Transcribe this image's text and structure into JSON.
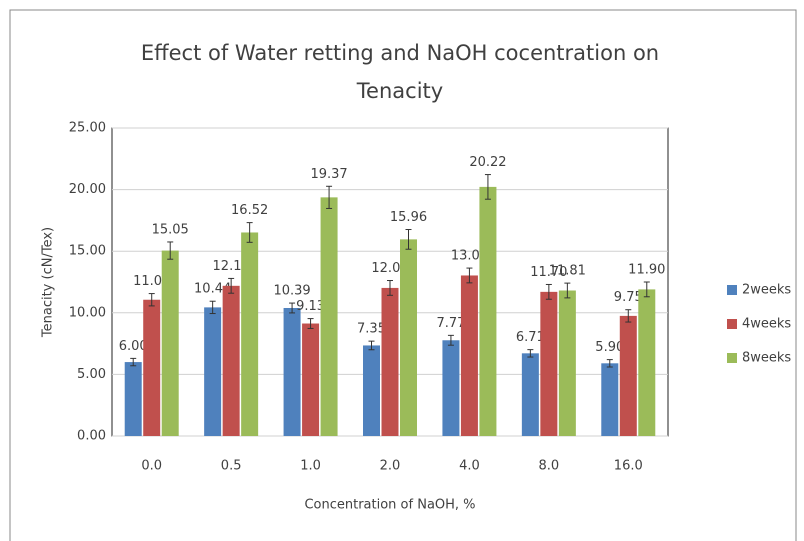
{
  "chart_data": {
    "type": "bar",
    "title": "Effect of Water retting and NaOH cocentration on Tenacity",
    "x_label": "Concentration of NaOH, %",
    "y_label": "Tenacity (cN/Tex)",
    "categories": [
      "0.0",
      "0.5",
      "1.0",
      "2.0",
      "4.0",
      "8.0",
      "16.0"
    ],
    "series": [
      {
        "name": "2weeks",
        "color": "#4f81bd",
        "values": [
          6.0,
          10.44,
          10.39,
          7.35,
          7.77,
          6.71,
          5.9
        ],
        "value_labels": [
          "6.00",
          "10.44",
          "10.39",
          "7.35",
          "7.77",
          "6.71",
          "5.90"
        ],
        "errors": [
          0.3,
          0.5,
          0.4,
          0.35,
          0.4,
          0.3,
          0.3
        ]
      },
      {
        "name": "4weeks",
        "color": "#c0504d",
        "values": [
          11.06,
          12.19,
          9.13,
          12.02,
          13.03,
          11.7,
          9.75
        ],
        "value_labels": [
          "11.06",
          "12.19",
          "9.13",
          "12.02",
          "13.03",
          "11.70",
          "9.75"
        ],
        "errors": [
          0.5,
          0.6,
          0.4,
          0.6,
          0.6,
          0.6,
          0.5
        ]
      },
      {
        "name": "8weeks",
        "color": "#9bbb59",
        "values": [
          15.05,
          16.52,
          19.37,
          15.96,
          20.22,
          11.81,
          11.9
        ],
        "value_labels": [
          "15.05",
          "16.52",
          "19.37",
          "15.96",
          "20.22",
          "11.81",
          "11.90"
        ],
        "errors": [
          0.7,
          0.8,
          0.9,
          0.8,
          1.0,
          0.6,
          0.6
        ]
      }
    ],
    "ylim": [
      0,
      25
    ],
    "yticks": [
      {
        "value": 0,
        "label": "0.00"
      },
      {
        "value": 5,
        "label": "5.00"
      },
      {
        "value": 10,
        "label": "10.00"
      },
      {
        "value": 15,
        "label": "15.00"
      },
      {
        "value": 20,
        "label": "20.00"
      },
      {
        "value": 25,
        "label": "25.00"
      }
    ],
    "grid": true,
    "legend": "right"
  }
}
